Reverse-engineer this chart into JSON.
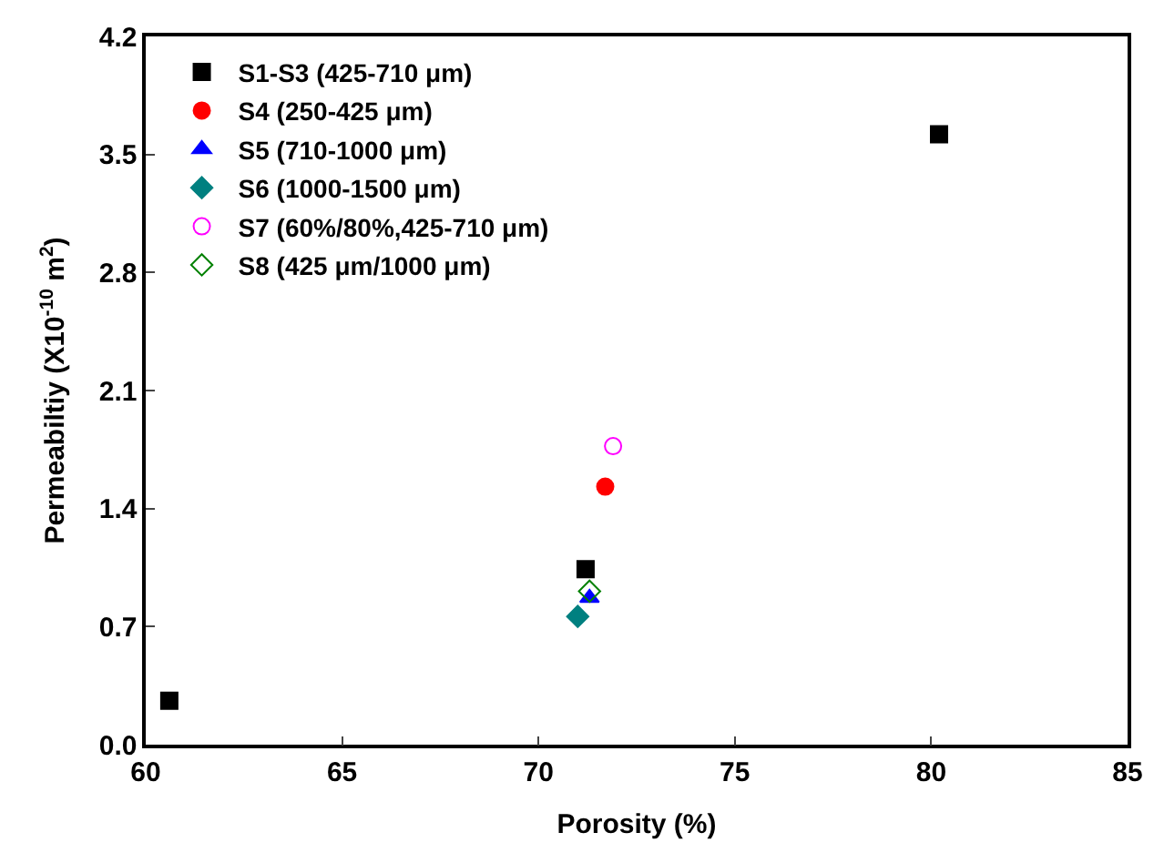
{
  "chart_data": {
    "type": "scatter",
    "xlabel": "Porosity (%)",
    "ylabel": "Permeabiltiy (X10$^{-10}$ m$^{2}$)",
    "xlim": [
      60,
      85
    ],
    "xticks": [
      60,
      65,
      70,
      75,
      80,
      85
    ],
    "ylim": [
      0,
      4.2
    ],
    "yticks": [
      {
        "value": 0,
        "label": "0.0"
      },
      0.7,
      1.4,
      2.1,
      2.8,
      3.5,
      4.2
    ],
    "legend": "top left",
    "series": [
      {
        "name": "S1-S3 (425-710 μm)",
        "color": "#000000",
        "marker": "square",
        "x": [
          60.6,
          71.2,
          80.2
        ],
        "values": [
          0.26,
          1.04,
          3.62
        ]
      },
      {
        "name": "S4 (250-425 μm)",
        "color": "#ff0000",
        "marker": "circle",
        "x": [
          71.7
        ],
        "values": [
          1.53
        ]
      },
      {
        "name": "S5 (710-1000 μm)",
        "color": "#0000ff",
        "marker": "triangle",
        "x": [
          71.3
        ],
        "values": [
          0.87
        ]
      },
      {
        "name": "S6 (1000-1500 μm)",
        "color": "#008080",
        "marker": "diamond",
        "x": [
          71.0
        ],
        "values": [
          0.76
        ]
      },
      {
        "name": "S7 (60%/80%,425-710 μm)",
        "color": "#ff00ff",
        "marker": "circle-open",
        "x": [
          71.9
        ],
        "values": [
          1.77
        ]
      },
      {
        "name": "S8 (425 μm/1000 μm)",
        "color": "#008000",
        "marker": "diamond-open",
        "x": [
          71.3
        ],
        "values": [
          0.91
        ]
      }
    ]
  }
}
